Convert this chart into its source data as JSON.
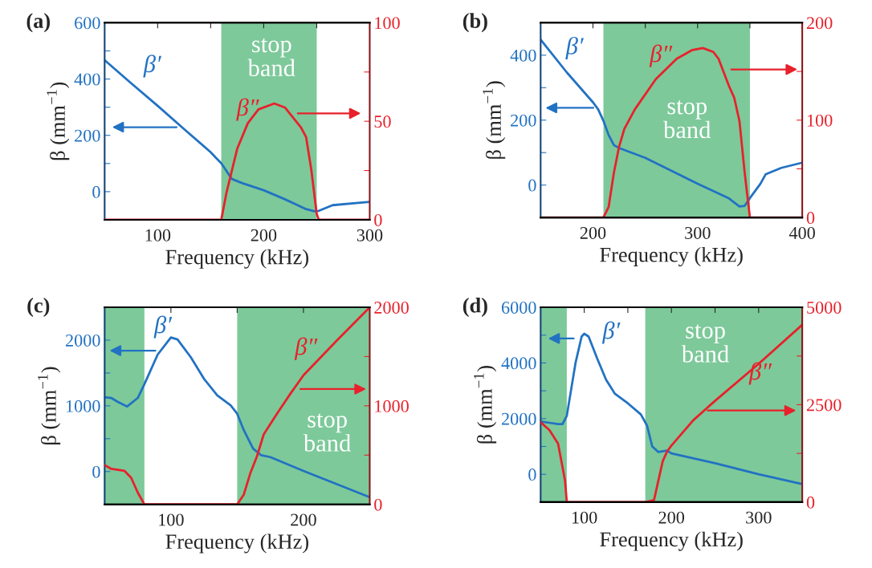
{
  "chart_data": [
    {
      "type": "line",
      "title": "(a)",
      "xlabel": "Frequency (kHz)",
      "ylabel": "β (mm$^{−1}$)",
      "xlim": [
        50,
        300
      ],
      "ylim": [
        -100,
        600
      ],
      "y2lim": [
        0,
        100
      ],
      "xticks": [
        100,
        {
          "value": 150,
          "label": null
        },
        200,
        {
          "value": 250,
          "label": null
        },
        300
      ],
      "yticks": [
        0,
        {
          "value": 100,
          "label": null
        },
        200,
        {
          "value": 300,
          "label": null
        },
        400,
        {
          "value": 500,
          "label": null
        },
        600
      ],
      "y2ticks": [
        0,
        {
          "value": 25,
          "label": null
        },
        50,
        {
          "value": 75,
          "label": null
        },
        100
      ],
      "bands": [
        {
          "axis": "x",
          "from": 160,
          "to": 250,
          "label": "stop band",
          "color": "#7dc99a"
        }
      ],
      "series": [
        {
          "name": "β′",
          "color": "#2272c3",
          "x": [
            50,
            75,
            100,
            125,
            150,
            155,
            160,
            170,
            180,
            200,
            220,
            240,
            248,
            252,
            265,
            300
          ],
          "values": [
            467,
            385,
            305,
            222,
            140,
            120,
            101,
            45,
            30,
            5,
            -27,
            -62,
            -70,
            -68,
            -48,
            -36
          ]
        },
        {
          "name": "β″",
          "color": "#e8212b",
          "axis": "y2",
          "x": [
            50,
            160,
            165,
            175,
            185,
            195,
            210,
            220,
            235,
            240,
            245,
            250,
            252,
            300
          ],
          "values": [
            0,
            0,
            14,
            36,
            49,
            56,
            59,
            57,
            47,
            42,
            25,
            3,
            0,
            0
          ]
        }
      ]
    },
    {
      "type": "line",
      "title": "(b)",
      "xlabel": "Frequency (kHz)",
      "ylabel": "β (mm$^{−1}$)",
      "xlim": [
        150,
        400
      ],
      "ylim": [
        -100,
        500
      ],
      "y2lim": [
        0,
        200
      ],
      "xticks": [
        200,
        {
          "value": 250,
          "label": null
        },
        300,
        {
          "value": 350,
          "label": null
        },
        400
      ],
      "yticks": [
        0,
        {
          "value": 100,
          "label": null
        },
        200,
        {
          "value": 300,
          "label": null
        },
        400
      ],
      "y2ticks": [
        0,
        {
          "value": 50,
          "label": null
        },
        100,
        {
          "value": 150,
          "label": null
        },
        200
      ],
      "bands": [
        {
          "axis": "x",
          "from": 210,
          "to": 350,
          "label": "stop band",
          "color": "#7dc99a"
        }
      ],
      "series": [
        {
          "name": "β′",
          "color": "#2272c3",
          "x": [
            150,
            175,
            200,
            205,
            210,
            215,
            220,
            225,
            250,
            300,
            330,
            340,
            345,
            350,
            360,
            365,
            380,
            400
          ],
          "values": [
            448,
            347,
            255,
            233,
            198,
            154,
            123,
            114,
            84,
            4,
            -41,
            -66,
            -64,
            -40,
            4,
            33,
            53,
            69
          ]
        },
        {
          "name": "β″",
          "color": "#e8212b",
          "axis": "y2",
          "x": [
            150,
            210,
            215,
            220,
            225,
            230,
            240,
            260,
            280,
            295,
            305,
            315,
            320,
            330,
            335,
            340,
            345,
            350,
            400
          ],
          "values": [
            0,
            0,
            11,
            46,
            73,
            91,
            111,
            142,
            163,
            172,
            174,
            170,
            163,
            135,
            123,
            99,
            46,
            0,
            0
          ]
        }
      ]
    },
    {
      "type": "line",
      "title": "(c)",
      "xlabel": "Frequency (kHz)",
      "ylabel": "β (mm$^{−1}$)",
      "xlim": [
        50,
        250
      ],
      "ylim": [
        -500,
        2500
      ],
      "y2lim": [
        0,
        2000
      ],
      "xticks": [
        100,
        {
          "value": 150,
          "label": null
        },
        200
      ],
      "yticks": [
        0,
        {
          "value": 500,
          "label": null
        },
        1000,
        {
          "value": 1500,
          "label": null
        },
        2000
      ],
      "y2ticks": [
        0,
        {
          "value": 500,
          "label": null
        },
        1000,
        {
          "value": 1500,
          "label": null
        },
        2000
      ],
      "bands": [
        {
          "axis": "x",
          "from": 50,
          "to": 80,
          "color": "#7dc99a"
        },
        {
          "axis": "x",
          "from": 150,
          "to": 250,
          "label": "stop band",
          "color": "#7dc99a"
        }
      ],
      "series": [
        {
          "name": "β′",
          "color": "#2272c3",
          "x": [
            50,
            55,
            60,
            67,
            75,
            80,
            90,
            100,
            105,
            115,
            125,
            135,
            145,
            150,
            155,
            162,
            168,
            175,
            200,
            250
          ],
          "values": [
            1130,
            1120,
            1060,
            990,
            1120,
            1330,
            1780,
            2040,
            2010,
            1740,
            1410,
            1160,
            1010,
            880,
            630,
            350,
            250,
            220,
            10,
            -390
          ]
        },
        {
          "name": "β″",
          "color": "#e8212b",
          "axis": "y2",
          "x": [
            50,
            55,
            65,
            70,
            75,
            80,
            150,
            155,
            160,
            165,
            170,
            180,
            190,
            200,
            225,
            250
          ],
          "values": [
            400,
            360,
            340,
            270,
            120,
            0,
            0,
            100,
            320,
            490,
            710,
            920,
            1120,
            1310,
            1660,
            2000
          ]
        }
      ]
    },
    {
      "type": "line",
      "title": "(d)",
      "xlabel": "Frequency (kHz)",
      "ylabel": "β (mm$^{−1}$)",
      "xlim": [
        50,
        350
      ],
      "ylim": [
        -1000,
        6000
      ],
      "y2lim": [
        0,
        5000
      ],
      "xticks": [
        100,
        {
          "value": 150,
          "label": null
        },
        200,
        {
          "value": 250,
          "label": null
        },
        300
      ],
      "yticks": [
        0,
        {
          "value": 1000,
          "label": null
        },
        2000,
        {
          "value": 3000,
          "label": null
        },
        4000,
        {
          "value": 5000,
          "label": null
        },
        6000
      ],
      "y2ticks": [
        0,
        {
          "value": 1250,
          "label": null
        },
        2500,
        {
          "value": 3750,
          "label": null
        },
        5000
      ],
      "bands": [
        {
          "axis": "x",
          "from": 50,
          "to": 80,
          "color": "#7dc99a"
        },
        {
          "axis": "x",
          "from": 170,
          "to": 350,
          "label": "stop band",
          "color": "#7dc99a"
        }
      ],
      "series": [
        {
          "name": "β′",
          "color": "#2272c3",
          "x": [
            50,
            60,
            70,
            75,
            80,
            85,
            90,
            97,
            100,
            105,
            115,
            125,
            135,
            150,
            165,
            172,
            178,
            185,
            195,
            200,
            250,
            300,
            350
          ],
          "values": [
            1900,
            1850,
            1800,
            1800,
            2100,
            3050,
            4000,
            4950,
            5050,
            4950,
            4150,
            3400,
            2900,
            2550,
            2150,
            1750,
            1000,
            800,
            850,
            750,
            400,
            0,
            -350
          ]
        },
        {
          "name": "β″",
          "color": "#e8212b",
          "axis": "y2",
          "x": [
            50,
            60,
            70,
            78,
            80,
            170,
            180,
            185,
            190,
            195,
            200,
            225,
            250,
            300,
            350
          ],
          "values": [
            2050,
            1850,
            1500,
            550,
            0,
            0,
            50,
            550,
            1050,
            1300,
            1450,
            2100,
            2600,
            3550,
            4550
          ]
        }
      ]
    }
  ]
}
